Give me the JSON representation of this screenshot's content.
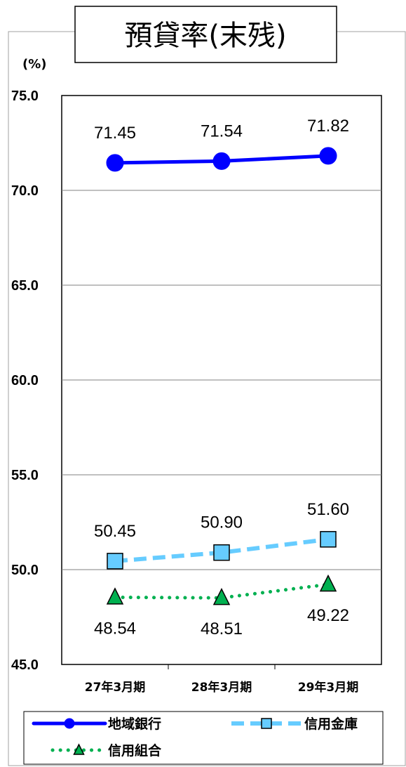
{
  "chart_data": {
    "type": "line",
    "title": "預貸率(末残)",
    "unit_label": "(%)",
    "categories": [
      "27年3月期",
      "28年3月期",
      "29年3月期"
    ],
    "ylim": [
      45.0,
      75.0
    ],
    "yticks": [
      "75.0",
      "70.0",
      "65.0",
      "60.0",
      "55.0",
      "50.0",
      "45.0"
    ],
    "grid": true,
    "legend_position": "bottom",
    "series": [
      {
        "name": "地域銀行",
        "values": [
          71.45,
          71.54,
          71.82
        ],
        "labels": [
          "71.45",
          "71.54",
          "71.82"
        ],
        "color": "#0000ff",
        "line_style": "solid",
        "marker": "circle",
        "label_position": "above"
      },
      {
        "name": "信用金庫",
        "values": [
          50.45,
          50.9,
          51.6
        ],
        "labels": [
          "50.45",
          "50.90",
          "51.60"
        ],
        "color": "#66ccff",
        "line_style": "dashed",
        "marker": "square",
        "label_position": "above"
      },
      {
        "name": "信用組合",
        "values": [
          48.54,
          48.51,
          49.22
        ],
        "labels": [
          "48.54",
          "48.51",
          "49.22"
        ],
        "color": "#00b050",
        "line_style": "dotted",
        "marker": "triangle",
        "label_position": "below"
      }
    ]
  }
}
